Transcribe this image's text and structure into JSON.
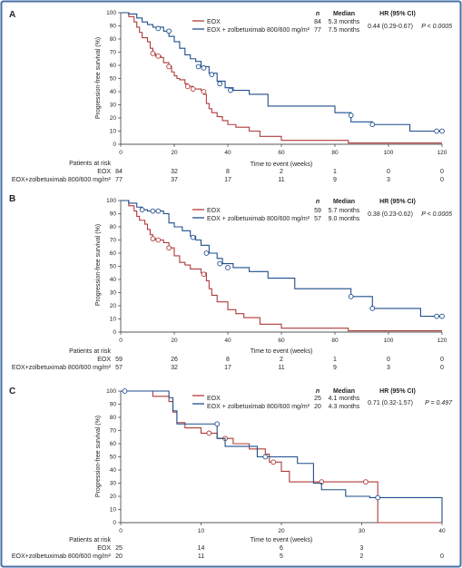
{
  "colors": {
    "eox": "#b03a3a",
    "zolbe": "#1f4e8c",
    "frame": "#4a6fa5",
    "text": "#231f20"
  },
  "chart_data": [
    {
      "type": "line",
      "panel_label": "A",
      "ylabel": "Progression-free survival (%)",
      "xlabel": "Time to event (weeks)",
      "xlim": [
        0,
        120
      ],
      "ylim": [
        0,
        100
      ],
      "xticks": [
        0,
        20,
        40,
        60,
        80,
        100,
        120
      ],
      "yticks": [
        0,
        10,
        20,
        30,
        40,
        50,
        60,
        70,
        80,
        90,
        100
      ],
      "legend": {
        "placement": "top-right",
        "headers": {
          "n": "n",
          "median": "Median",
          "hr": "HR (95% CI)"
        },
        "hr": "0.44 (0.29-0.67)",
        "p": "P < 0.0005"
      },
      "series": [
        {
          "name": "EOX",
          "key": "eox",
          "n": "84",
          "median": "5.3 months",
          "x": [
            0,
            3,
            5,
            6,
            7,
            8,
            10,
            11,
            12,
            13,
            15,
            16,
            18,
            19,
            20,
            21,
            22,
            24,
            25,
            27,
            30,
            31,
            32,
            33,
            34,
            36,
            38,
            40,
            43,
            48,
            52,
            60,
            70,
            85,
            120
          ],
          "y": [
            100,
            97,
            93,
            89,
            85,
            81,
            78,
            73,
            69,
            67,
            66,
            62,
            59,
            55,
            52,
            50,
            49,
            46,
            44,
            42,
            41,
            38,
            31,
            27,
            24,
            21,
            18,
            15,
            13,
            10,
            6,
            3,
            3,
            1,
            1
          ],
          "censors": [
            [
              12,
              69
            ],
            [
              14,
              67
            ],
            [
              18,
              59
            ],
            [
              25,
              44
            ],
            [
              27,
              42
            ],
            [
              31,
              40
            ]
          ]
        },
        {
          "name": "EOX + zolbetuximab 800/600 mg/m²",
          "key": "zolbe",
          "n": "77",
          "median": "7.5 months",
          "x": [
            0,
            3,
            6,
            8,
            10,
            12,
            16,
            18,
            20,
            22,
            24,
            26,
            28,
            30,
            33,
            36,
            39,
            42,
            48,
            55,
            65,
            80,
            86,
            94,
            108,
            120
          ],
          "y": [
            100,
            99,
            96,
            93,
            91,
            89,
            86,
            82,
            78,
            73,
            68,
            65,
            63,
            59,
            54,
            48,
            43,
            41,
            38,
            29,
            29,
            24,
            17,
            15,
            10,
            10
          ],
          "censors": [
            [
              14,
              88
            ],
            [
              18,
              86
            ],
            [
              29,
              59
            ],
            [
              31,
              58
            ],
            [
              34,
              53
            ],
            [
              37,
              46
            ],
            [
              41,
              41
            ],
            [
              86,
              22
            ],
            [
              94,
              15
            ],
            [
              118,
              10
            ],
            [
              120,
              10
            ]
          ]
        }
      ],
      "at_risk": {
        "title": "Patients at risk",
        "x": [
          0,
          20,
          40,
          60,
          80,
          100,
          120
        ],
        "rows": [
          {
            "label": "EOX",
            "values": [
              "84",
              "32",
              "8",
              "2",
              "1",
              "0",
              "0"
            ]
          },
          {
            "label": "EOX+zolbetuximab 800/600 mg/m²",
            "values": [
              "77",
              "37",
              "17",
              "11",
              "9",
              "3",
              "0"
            ]
          }
        ]
      }
    },
    {
      "type": "line",
      "panel_label": "B",
      "ylabel": "Progression-free survival (%)",
      "xlabel": "Time to event (weeks)",
      "xlim": [
        0,
        120
      ],
      "ylim": [
        0,
        100
      ],
      "xticks": [
        0,
        20,
        40,
        60,
        80,
        100,
        120
      ],
      "yticks": [
        0,
        10,
        20,
        30,
        40,
        50,
        60,
        70,
        80,
        90,
        100
      ],
      "legend": {
        "placement": "top-right",
        "headers": {
          "n": "n",
          "median": "Median",
          "hr": "HR (95% CI)"
        },
        "hr": "0.38 (0.23-0.62)",
        "p": "P < 0.0005"
      },
      "series": [
        {
          "name": "EOX",
          "key": "eox",
          "n": "59",
          "median": "5.7 months",
          "x": [
            0,
            3,
            5,
            6,
            7,
            9,
            10,
            11,
            12,
            13,
            16,
            18,
            20,
            22,
            24,
            26,
            30,
            32,
            33,
            34,
            36,
            40,
            43,
            46,
            52,
            60,
            85,
            120
          ],
          "y": [
            100,
            96,
            92,
            88,
            85,
            82,
            78,
            74,
            71,
            70,
            68,
            64,
            58,
            53,
            51,
            48,
            45,
            39,
            33,
            28,
            23,
            17,
            14,
            11,
            6,
            3,
            1,
            1
          ],
          "censors": [
            [
              12,
              71
            ],
            [
              14,
              70
            ],
            [
              18,
              64
            ],
            [
              31,
              44
            ]
          ]
        },
        {
          "name": "EOX + zolbetuximab 800/600 mg/m²",
          "key": "zolbe",
          "n": "57",
          "median": "9.0 months",
          "x": [
            0,
            3,
            6,
            8,
            10,
            16,
            18,
            20,
            23,
            26,
            28,
            30,
            33,
            36,
            38,
            42,
            48,
            55,
            65,
            80,
            86,
            94,
            112,
            120
          ],
          "y": [
            100,
            98,
            95,
            93,
            92,
            90,
            83,
            80,
            77,
            73,
            70,
            66,
            60,
            56,
            52,
            49,
            46,
            41,
            33,
            33,
            27,
            18,
            12,
            12
          ],
          "censors": [
            [
              8,
              93
            ],
            [
              12,
              92
            ],
            [
              14,
              92
            ],
            [
              27,
              72
            ],
            [
              32,
              60
            ],
            [
              37,
              52
            ],
            [
              40,
              49
            ],
            [
              86,
              27
            ],
            [
              94,
              18
            ],
            [
              118,
              12
            ],
            [
              120,
              12
            ]
          ]
        }
      ],
      "at_risk": {
        "title": "Patients at risk",
        "x": [
          0,
          20,
          40,
          60,
          80,
          100,
          120
        ],
        "rows": [
          {
            "label": "EOX",
            "values": [
              "59",
              "26",
              "8",
              "2",
              "1",
              "0",
              "0"
            ]
          },
          {
            "label": "EOX+zolbetuximab 800/600 mg/m²",
            "values": [
              "57",
              "32",
              "17",
              "11",
              "9",
              "3",
              "0"
            ]
          }
        ]
      }
    },
    {
      "type": "line",
      "panel_label": "C",
      "ylabel": "Progression-free survival (%)",
      "xlabel": "Time to event (weeks)",
      "xlim": [
        0,
        40
      ],
      "ylim": [
        0,
        100
      ],
      "xticks": [
        0,
        10,
        20,
        30,
        40
      ],
      "yticks": [
        0,
        10,
        20,
        30,
        40,
        50,
        60,
        70,
        80,
        90,
        100
      ],
      "legend": {
        "placement": "top-right",
        "headers": {
          "n": "n",
          "median": "Median",
          "hr": "HR (95% CI)"
        },
        "hr": "0.71 (0.32-1.57)",
        "p": "P = 0.497"
      },
      "series": [
        {
          "name": "EOX",
          "key": "eox",
          "n": "25",
          "median": "4.1 months",
          "x": [
            0,
            4,
            6,
            6.5,
            7,
            8,
            10,
            12,
            14,
            16,
            18,
            18.5,
            20,
            21,
            32,
            40
          ],
          "y": [
            100,
            96,
            92,
            84,
            76,
            72,
            68,
            64,
            60,
            56,
            52,
            46,
            39,
            31,
            0,
            0
          ],
          "censors": [
            [
              11,
              68
            ],
            [
              13,
              64
            ],
            [
              19,
              46
            ],
            [
              25,
              31
            ],
            [
              30.5,
              31
            ]
          ]
        },
        {
          "name": "EOX + zolbetuximab 800/600 mg/m²",
          "key": "zolbe",
          "n": "20",
          "median": "4.3 months",
          "x": [
            0,
            4,
            6,
            6.5,
            7,
            11,
            12,
            13,
            17,
            22,
            24,
            25,
            28,
            31,
            40
          ],
          "y": [
            100,
            100,
            95,
            85,
            75,
            75,
            64,
            58,
            50,
            45,
            30,
            25,
            20,
            19,
            0
          ],
          "censors": [
            [
              0.5,
              100
            ],
            [
              12,
              75
            ],
            [
              18,
              50
            ],
            [
              32,
              19
            ]
          ]
        }
      ],
      "at_risk": {
        "title": "Patients at risk",
        "x": [
          0,
          10,
          20,
          30,
          40
        ],
        "rows": [
          {
            "label": "EOX",
            "values": [
              "25",
              "14",
              "6",
              "3",
              ""
            ]
          },
          {
            "label": "EOX+zolbetuximab 800/600 mg/m²",
            "values": [
              "20",
              "11",
              "5",
              "2",
              "0"
            ]
          }
        ]
      }
    }
  ]
}
